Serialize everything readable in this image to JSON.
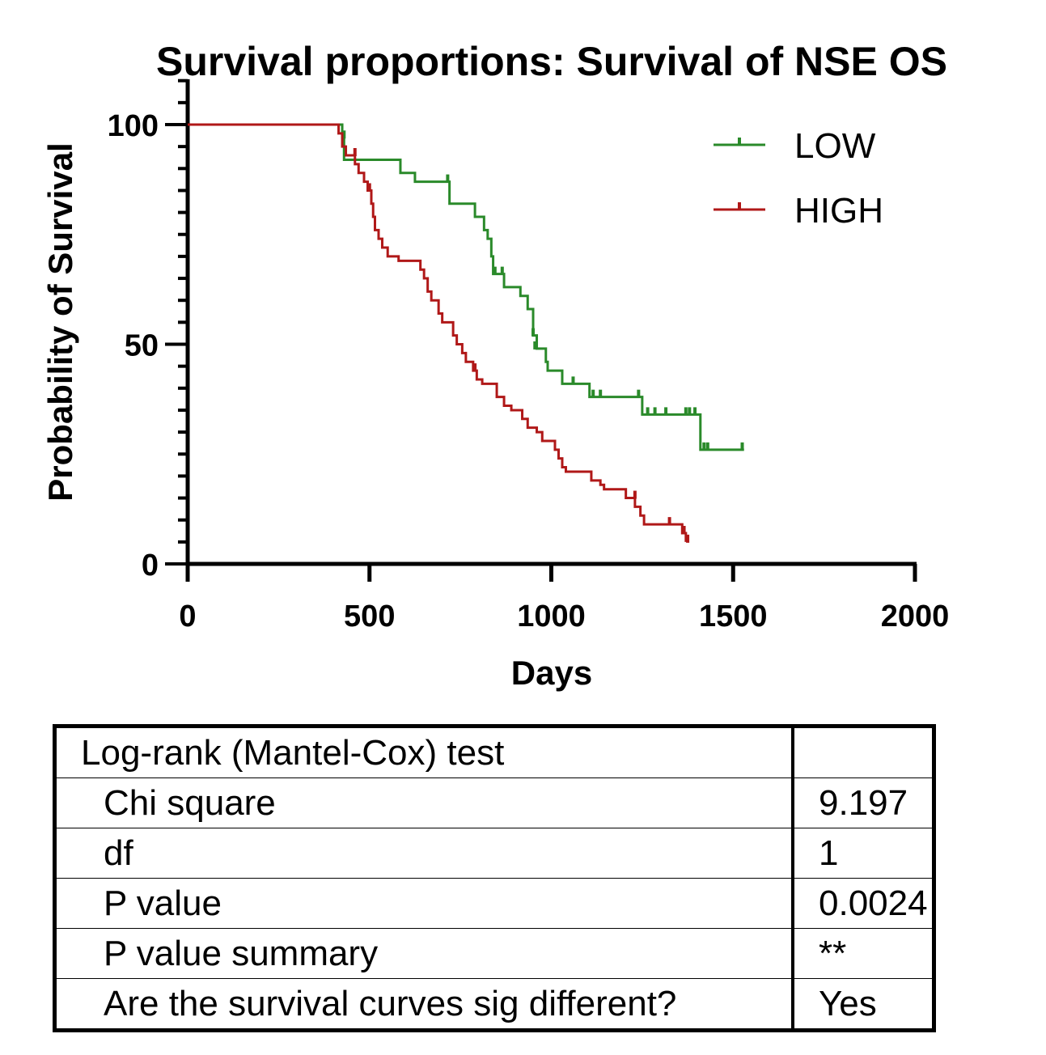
{
  "chart_data": {
    "type": "line",
    "subtype": "kaplan-meier-survival",
    "title": "Survival proportions: Survival of NSE OS",
    "xlabel": "Days",
    "ylabel": "Probability of Survival",
    "xlim": [
      0,
      2000
    ],
    "ylim": [
      0,
      100
    ],
    "xticks": [
      "0",
      "500",
      "1000",
      "1500",
      "2000"
    ],
    "yticks": [
      "0",
      "50",
      "100"
    ],
    "y_minor_step": 5,
    "grid": false,
    "legend_position": "top-right",
    "series": [
      {
        "name": "LOW",
        "color": "#2a8a2a",
        "steps": [
          [
            0,
            100
          ],
          [
            425,
            97
          ],
          [
            430,
            92
          ],
          [
            585,
            89
          ],
          [
            625,
            87
          ],
          [
            720,
            82
          ],
          [
            790,
            79
          ],
          [
            815,
            76
          ],
          [
            825,
            74
          ],
          [
            835,
            70
          ],
          [
            840,
            66
          ],
          [
            870,
            63
          ],
          [
            915,
            61
          ],
          [
            935,
            58
          ],
          [
            950,
            52
          ],
          [
            960,
            49
          ],
          [
            985,
            46
          ],
          [
            990,
            44
          ],
          [
            1030,
            41
          ],
          [
            1105,
            38
          ],
          [
            1250,
            34
          ],
          [
            1410,
            26
          ],
          [
            1530,
            26
          ]
        ],
        "censored": [
          [
            430,
            97
          ],
          [
            715,
            87
          ],
          [
            845,
            66
          ],
          [
            865,
            66
          ],
          [
            950,
            52
          ],
          [
            955,
            49
          ],
          [
            1060,
            41
          ],
          [
            1115,
            38
          ],
          [
            1135,
            38
          ],
          [
            1240,
            38
          ],
          [
            1265,
            34
          ],
          [
            1285,
            34
          ],
          [
            1315,
            34
          ],
          [
            1370,
            34
          ],
          [
            1380,
            34
          ],
          [
            1395,
            34
          ],
          [
            1420,
            26
          ],
          [
            1430,
            26
          ],
          [
            1525,
            26
          ]
        ]
      },
      {
        "name": "HIGH",
        "color": "#b01818",
        "steps": [
          [
            0,
            100
          ],
          [
            415,
            98
          ],
          [
            425,
            95
          ],
          [
            435,
            93
          ],
          [
            460,
            91
          ],
          [
            470,
            89
          ],
          [
            485,
            87
          ],
          [
            495,
            85
          ],
          [
            505,
            82
          ],
          [
            510,
            79
          ],
          [
            515,
            76
          ],
          [
            525,
            74
          ],
          [
            535,
            72
          ],
          [
            550,
            70
          ],
          [
            580,
            69
          ],
          [
            640,
            67
          ],
          [
            650,
            65
          ],
          [
            660,
            62
          ],
          [
            670,
            60
          ],
          [
            690,
            57
          ],
          [
            700,
            55
          ],
          [
            730,
            52
          ],
          [
            740,
            50
          ],
          [
            755,
            48
          ],
          [
            765,
            46
          ],
          [
            785,
            44
          ],
          [
            795,
            42
          ],
          [
            810,
            41
          ],
          [
            850,
            38
          ],
          [
            870,
            36
          ],
          [
            890,
            35
          ],
          [
            920,
            33
          ],
          [
            935,
            31
          ],
          [
            960,
            30
          ],
          [
            975,
            28
          ],
          [
            1010,
            26
          ],
          [
            1020,
            24
          ],
          [
            1030,
            22
          ],
          [
            1040,
            21
          ],
          [
            1110,
            19
          ],
          [
            1135,
            18
          ],
          [
            1145,
            17
          ],
          [
            1205,
            15
          ],
          [
            1230,
            13
          ],
          [
            1245,
            11
          ],
          [
            1255,
            9
          ],
          [
            1360,
            7
          ],
          [
            1370,
            5
          ]
        ],
        "censored": [
          [
            460,
            93
          ],
          [
            500,
            85
          ],
          [
            790,
            44
          ],
          [
            1230,
            15
          ],
          [
            1325,
            9
          ],
          [
            1365,
            7
          ],
          [
            1375,
            5
          ]
        ]
      }
    ]
  },
  "stats_table": {
    "header": "Log-rank (Mantel-Cox) test",
    "rows": [
      {
        "label": "Chi square",
        "value": "9.197"
      },
      {
        "label": "df",
        "value": "1"
      },
      {
        "label": "P value",
        "value": "0.0024"
      },
      {
        "label": "P value summary",
        "value": "**"
      },
      {
        "label": "Are the survival curves sig different?",
        "value": "Yes"
      }
    ]
  }
}
